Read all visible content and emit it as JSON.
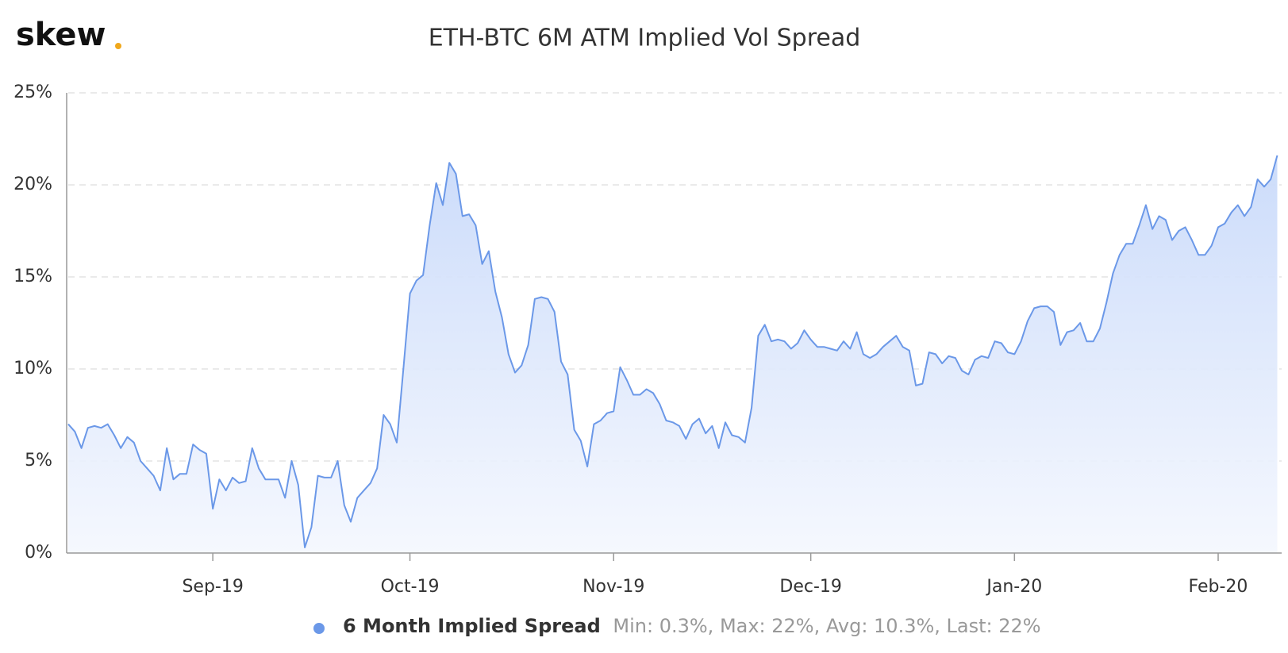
{
  "chart_data": {
    "type": "area",
    "logo": "skew",
    "title": "ETH-BTC 6M ATM Implied Vol Spread",
    "legend_stats": "Min: 0.3%, Max: 22%, Avg: 10.3%, Last: 22%",
    "categories": [
      null,
      null,
      null,
      null,
      null,
      null,
      null,
      null,
      null,
      null,
      null,
      null,
      null,
      null,
      null,
      null,
      null,
      null,
      null,
      null,
      null,
      null,
      "Sep-19",
      null,
      null,
      null,
      null,
      null,
      null,
      null,
      null,
      null,
      null,
      null,
      null,
      null,
      null,
      null,
      null,
      null,
      null,
      null,
      null,
      null,
      null,
      null,
      null,
      null,
      null,
      null,
      null,
      null,
      "Oct-19",
      null,
      null,
      null,
      null,
      null,
      null,
      null,
      null,
      null,
      null,
      null,
      null,
      null,
      null,
      null,
      null,
      null,
      null,
      null,
      null,
      null,
      null,
      null,
      null,
      null,
      null,
      null,
      null,
      null,
      null,
      "Nov-19",
      null,
      null,
      null,
      null,
      null,
      null,
      null,
      null,
      null,
      null,
      null,
      null,
      null,
      null,
      null,
      null,
      null,
      null,
      null,
      null,
      null,
      null,
      null,
      null,
      null,
      null,
      null,
      null,
      null,
      "Dec-19",
      null,
      null,
      null,
      null,
      null,
      null,
      null,
      null,
      null,
      null,
      null,
      null,
      null,
      null,
      null,
      null,
      null,
      null,
      null,
      null,
      null,
      null,
      null,
      null,
      null,
      null,
      null,
      null,
      null,
      null,
      "Jan-20",
      null,
      null,
      null,
      null,
      null,
      null,
      null,
      null,
      null,
      null,
      null,
      null,
      null,
      null,
      null,
      null,
      null,
      null,
      null,
      null,
      null,
      null,
      null,
      null,
      null,
      null,
      null,
      null,
      null,
      null,
      "Feb-20",
      null,
      null,
      null,
      null,
      null,
      null,
      null,
      null,
      null
    ],
    "series": [
      {
        "name": "6 Month Implied Spread",
        "color": "#6b98e8",
        "values": [
          7.0,
          6.6,
          5.7,
          6.8,
          6.9,
          6.8,
          7.0,
          6.4,
          5.7,
          6.3,
          6.0,
          5.0,
          4.6,
          4.2,
          3.4,
          5.7,
          4.0,
          4.3,
          4.3,
          5.9,
          5.6,
          5.4,
          2.4,
          4.0,
          3.4,
          4.1,
          3.8,
          3.9,
          5.7,
          4.6,
          4.0,
          4.0,
          4.0,
          3.0,
          5.0,
          3.7,
          0.3,
          1.4,
          4.2,
          4.1,
          4.1,
          5.0,
          2.6,
          1.7,
          3.0,
          3.4,
          3.8,
          4.6,
          7.5,
          7.0,
          6.0,
          10.0,
          14.1,
          14.8,
          15.1,
          17.8,
          20.1,
          18.9,
          21.2,
          20.6,
          18.3,
          18.4,
          17.8,
          15.7,
          16.4,
          14.2,
          12.8,
          10.8,
          9.8,
          10.2,
          11.3,
          13.8,
          13.9,
          13.8,
          13.1,
          10.4,
          9.7,
          6.7,
          6.1,
          4.7,
          7.0,
          7.2,
          7.6,
          7.7,
          10.1,
          9.4,
          8.6,
          8.6,
          8.9,
          8.7,
          8.1,
          7.2,
          7.1,
          6.9,
          6.2,
          7.0,
          7.3,
          6.5,
          6.9,
          5.7,
          7.1,
          6.4,
          6.3,
          6.0,
          7.9,
          11.8,
          12.4,
          11.5,
          11.6,
          11.5,
          11.1,
          11.4,
          12.1,
          11.6,
          11.2,
          11.2,
          11.1,
          11.0,
          11.5,
          11.1,
          12.0,
          10.8,
          10.6,
          10.8,
          11.2,
          11.5,
          11.8,
          11.2,
          11.0,
          9.1,
          9.2,
          10.9,
          10.8,
          10.3,
          10.7,
          10.6,
          9.9,
          9.7,
          10.5,
          10.7,
          10.6,
          11.5,
          11.4,
          10.9,
          10.8,
          11.5,
          12.6,
          13.3,
          13.4,
          13.4,
          13.1,
          11.3,
          12.0,
          12.1,
          12.5,
          11.5,
          11.5,
          12.2,
          13.6,
          15.2,
          16.2,
          16.8,
          16.8,
          17.8,
          18.9,
          17.6,
          18.3,
          18.1,
          17.0,
          17.5,
          17.7,
          17.0,
          16.2,
          16.2,
          16.7,
          17.7,
          17.9,
          18.5,
          18.9,
          18.3,
          18.8,
          20.3,
          19.9,
          20.3,
          21.6
        ]
      }
    ],
    "ylim": [
      0,
      25
    ],
    "yticks": [
      {
        "value": 0,
        "label": "0%"
      },
      {
        "value": 5,
        "label": "5%"
      },
      {
        "value": 10,
        "label": "10%"
      },
      {
        "value": 15,
        "label": "15%"
      },
      {
        "value": 20,
        "label": "20%"
      },
      {
        "value": 25,
        "label": "25%"
      }
    ],
    "grid": true
  }
}
